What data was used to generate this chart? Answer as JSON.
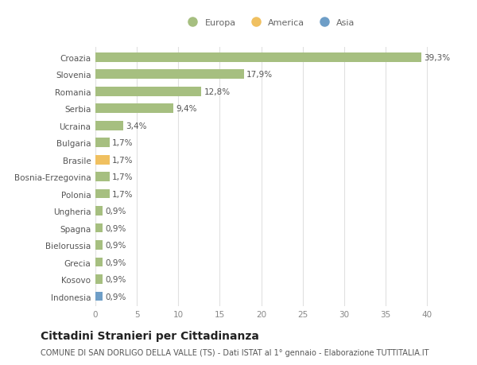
{
  "categories": [
    "Indonesia",
    "Kosovo",
    "Grecia",
    "Bielorussia",
    "Spagna",
    "Ungheria",
    "Polonia",
    "Bosnia-Erzegovina",
    "Brasile",
    "Bulgaria",
    "Ucraina",
    "Serbia",
    "Romania",
    "Slovenia",
    "Croazia"
  ],
  "values": [
    0.9,
    0.9,
    0.9,
    0.9,
    0.9,
    0.9,
    1.7,
    1.7,
    1.7,
    1.7,
    3.4,
    9.4,
    12.8,
    17.9,
    39.3
  ],
  "labels": [
    "0,9%",
    "0,9%",
    "0,9%",
    "0,9%",
    "0,9%",
    "0,9%",
    "1,7%",
    "1,7%",
    "1,7%",
    "1,7%",
    "3,4%",
    "9,4%",
    "12,8%",
    "17,9%",
    "39,3%"
  ],
  "colors": [
    "#6e9ec7",
    "#a6bf80",
    "#a6bf80",
    "#a6bf80",
    "#a6bf80",
    "#a6bf80",
    "#a6bf80",
    "#a6bf80",
    "#f0c060",
    "#a6bf80",
    "#a6bf80",
    "#a6bf80",
    "#a6bf80",
    "#a6bf80",
    "#a6bf80"
  ],
  "legend": [
    {
      "label": "Europa",
      "color": "#a6bf80"
    },
    {
      "label": "America",
      "color": "#f0c060"
    },
    {
      "label": "Asia",
      "color": "#6e9ec7"
    }
  ],
  "title": "Cittadini Stranieri per Cittadinanza",
  "subtitle": "COMUNE DI SAN DORLIGO DELLA VALLE (TS) - Dati ISTAT al 1° gennaio - Elaborazione TUTTITALIA.IT",
  "xlim": [
    0,
    42
  ],
  "xticks": [
    0,
    5,
    10,
    15,
    20,
    25,
    30,
    35,
    40
  ],
  "bg_color": "#ffffff",
  "grid_color": "#e0e0e0",
  "bar_height": 0.55,
  "label_fontsize": 7.5,
  "tick_fontsize": 7.5,
  "title_fontsize": 10,
  "subtitle_fontsize": 7
}
